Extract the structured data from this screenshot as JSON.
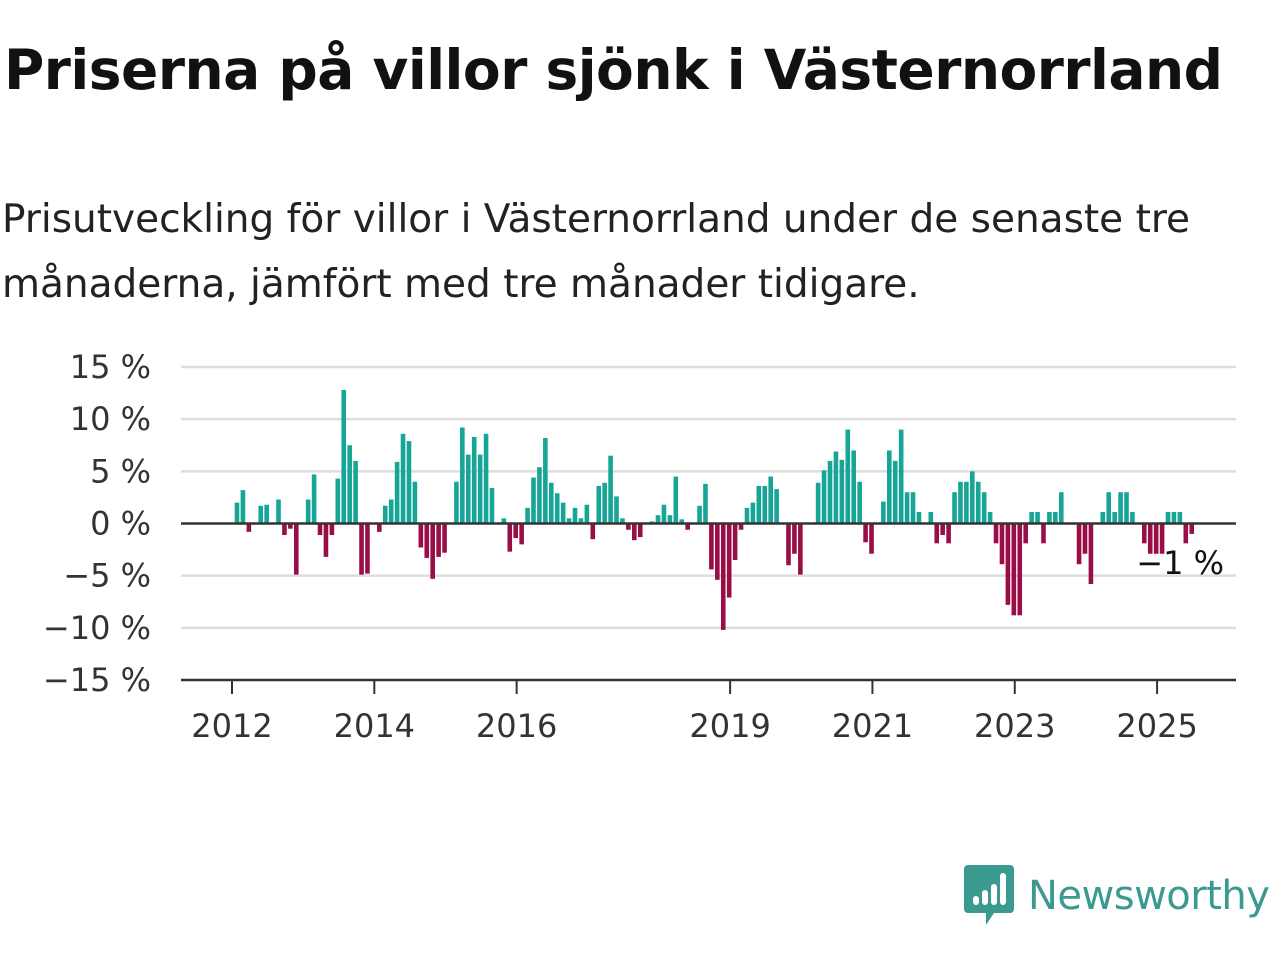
{
  "title": "Priserna på villor sjönk i Västernorrland",
  "subtitle": "Prisutveckling för villor i Västernorrland under de senaste tre månaderna, jämfört med tre månader tidigare.",
  "brand": {
    "name": "Newsworthy",
    "color": "#3a9a8f"
  },
  "colors": {
    "positive": "#16a596",
    "negative": "#9a0e47",
    "grid": "#dddddd",
    "axis": "#333333"
  },
  "chart_data": {
    "type": "bar",
    "title": "Priserna på villor sjönk i Västernorrland",
    "xlabel": "",
    "ylabel": "",
    "ylim": [
      -15,
      15
    ],
    "yticks": [
      15,
      10,
      5,
      0,
      -5,
      -10,
      -15
    ],
    "ytick_labels": [
      "15 %",
      "10 %",
      "5 %",
      "0 %",
      "−5 %",
      "−10 %",
      "−15 %"
    ],
    "xticks": [
      {
        "label": "2012",
        "year": 2012
      },
      {
        "label": "2014",
        "year": 2014
      },
      {
        "label": "2016",
        "year": 2016
      },
      {
        "label": "2019",
        "year": 2019
      },
      {
        "label": "2021",
        "year": 2021
      },
      {
        "label": "2023",
        "year": 2023
      },
      {
        "label": "2025",
        "year": 2025
      }
    ],
    "series_start": "2012-01",
    "values": [
      2,
      3.2,
      -0.8,
      0,
      1.7,
      1.8,
      0,
      2.3,
      -1.1,
      -0.5,
      -4.9,
      0,
      2.3,
      4.7,
      -1.1,
      -3.2,
      -1.1,
      4.3,
      12.8,
      7.5,
      6,
      -4.9,
      -4.8,
      0,
      -0.8,
      1.7,
      2.3,
      5.9,
      8.6,
      7.9,
      4,
      -2.3,
      -3.3,
      -5.3,
      -3.2,
      -2.8,
      0,
      4,
      9.2,
      6.6,
      8.3,
      6.6,
      8.6,
      3.4,
      0,
      0.5,
      -2.7,
      -1.4,
      -2,
      1.5,
      4.4,
      5.4,
      8.2,
      3.9,
      2.9,
      2,
      0.5,
      1.5,
      0.5,
      1.8,
      -1.5,
      3.6,
      3.9,
      6.5,
      2.6,
      0.5,
      -0.6,
      -1.6,
      -1.3,
      0,
      0.2,
      0.8,
      1.8,
      0.8,
      4.5,
      0.4,
      -0.6,
      0,
      1.7,
      3.8,
      -4.4,
      -5.4,
      -10.2,
      -7.1,
      -3.5,
      -0.6,
      1.5,
      2,
      3.6,
      3.6,
      4.5,
      3.3,
      0,
      -4,
      -2.9,
      -4.9,
      0,
      0,
      3.9,
      5.1,
      6,
      6.9,
      6.1,
      9,
      7,
      4,
      -1.8,
      -2.9,
      0,
      2.1,
      7,
      6,
      9,
      3,
      3,
      1.1,
      0,
      1.1,
      -1.9,
      -1.1,
      -1.9,
      3,
      4,
      4,
      5,
      4,
      3,
      1.1,
      -1.9,
      -3.9,
      -7.8,
      -8.8,
      -8.8,
      -1.9,
      1.1,
      1.1,
      -1.9,
      1.1,
      1.1,
      3,
      0,
      0,
      -3.9,
      -2.9,
      -5.8,
      0,
      1.1,
      3,
      1.1,
      3,
      3,
      1.1,
      0,
      -1.9,
      -2.9,
      -2.9,
      -2.9,
      1.1,
      1.1,
      1.1,
      -1.9,
      -1
    ],
    "end_label": "−1 %",
    "grid": true,
    "legend": "none"
  }
}
